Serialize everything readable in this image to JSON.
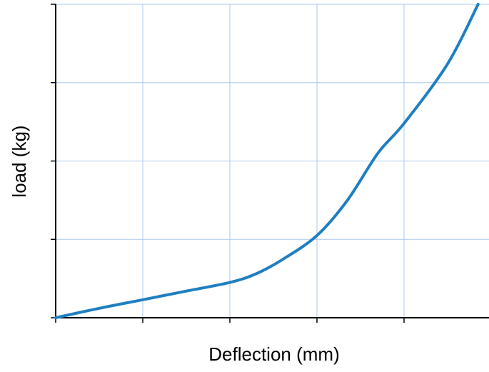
{
  "chart_data": {
    "type": "line",
    "title": "",
    "xlabel": "Deflection (mm)",
    "ylabel": "load (kg)",
    "xlim": [
      0,
      5
    ],
    "ylim": [
      0,
      4
    ],
    "x_ticks": [
      0,
      1,
      2,
      3,
      4,
      5
    ],
    "y_ticks": [
      0,
      1,
      2,
      3,
      4
    ],
    "tick_labels_shown": false,
    "grid": true,
    "legend": "none",
    "series": [
      {
        "color": "#1f7fc0",
        "points": [
          [
            0.0,
            0.0
          ],
          [
            0.5,
            0.12
          ],
          [
            1.0,
            0.23
          ],
          [
            1.5,
            0.34
          ],
          [
            2.0,
            0.45
          ],
          [
            2.3,
            0.56
          ],
          [
            2.6,
            0.74
          ],
          [
            3.0,
            1.05
          ],
          [
            3.35,
            1.5
          ],
          [
            3.7,
            2.1
          ],
          [
            4.0,
            2.48
          ],
          [
            4.5,
            3.24
          ],
          [
            4.85,
            4.0
          ]
        ]
      }
    ]
  }
}
